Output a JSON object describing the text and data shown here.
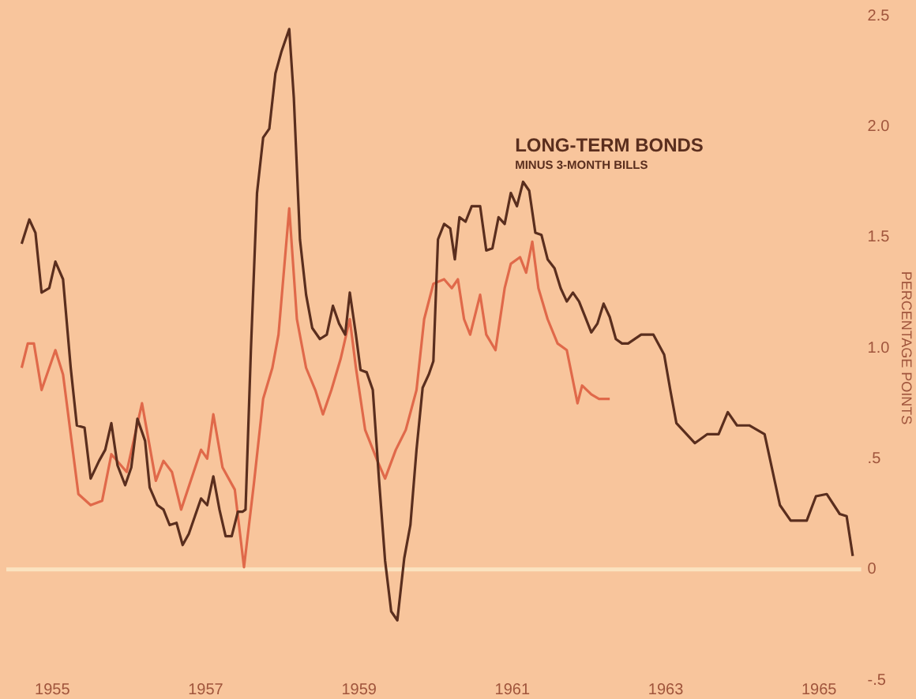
{
  "chart_data": {
    "type": "line",
    "ylabel": "PERCENTAGE POINTS",
    "xlim": [
      1954.9,
      1966.05
    ],
    "xticks": [
      {
        "value": 1955.5,
        "label": "1955"
      },
      {
        "value": 1957.5,
        "label": "1957"
      },
      {
        "value": 1959.5,
        "label": "1959"
      },
      {
        "value": 1961.5,
        "label": "1961"
      },
      {
        "value": 1963.5,
        "label": "1963"
      },
      {
        "value": 1965.5,
        "label": "1965"
      }
    ],
    "ylim": [
      -0.5,
      2.5
    ],
    "yticks": [
      {
        "value": 2.5,
        "label": "2.5"
      },
      {
        "value": 2.0,
        "label": "2.0"
      },
      {
        "value": 1.5,
        "label": "1.5"
      },
      {
        "value": 1.0,
        "label": "1.0"
      },
      {
        "value": 0.5,
        "label": ".5"
      },
      {
        "value": 0,
        "label": "0"
      },
      {
        "value": -0.5,
        "label": "-.5"
      }
    ],
    "grid": false,
    "legend": false,
    "marker": "none",
    "line_style": "solid",
    "ref_lines": [
      {
        "axis": "y",
        "value": 0,
        "color": "#fbe3c0"
      }
    ],
    "series": [
      {
        "name": "LONG-TERM BONDS\nMINUS 3-MONTH BILLS",
        "color": "#5a2e1e",
        "x": [
          1955.1,
          1955.2,
          1955.28,
          1955.36,
          1955.46,
          1955.54,
          1955.64,
          1955.74,
          1955.82,
          1955.92,
          1956.0,
          1956.11,
          1956.19,
          1956.27,
          1956.35,
          1956.45,
          1956.53,
          1956.61,
          1956.71,
          1956.77,
          1956.87,
          1956.95,
          1957.03,
          1957.12,
          1957.2,
          1957.28,
          1957.36,
          1957.44,
          1957.52,
          1957.6,
          1957.68,
          1957.76,
          1957.84,
          1957.92,
          1957.98,
          1958.02,
          1958.09,
          1958.17,
          1958.25,
          1958.33,
          1958.41,
          1958.49,
          1958.59,
          1958.65,
          1958.73,
          1958.81,
          1958.89,
          1958.99,
          1959.08,
          1959.16,
          1959.24,
          1959.32,
          1959.38,
          1959.46,
          1959.52,
          1959.6,
          1959.68,
          1959.76,
          1959.84,
          1959.92,
          1960.0,
          1960.09,
          1960.17,
          1960.25,
          1960.33,
          1960.41,
          1960.47,
          1960.53,
          1960.61,
          1960.69,
          1960.75,
          1960.81,
          1960.89,
          1960.97,
          1961.08,
          1961.16,
          1961.24,
          1961.32,
          1961.4,
          1961.48,
          1961.56,
          1961.64,
          1961.72,
          1961.8,
          1961.88,
          1961.96,
          1962.05,
          1962.13,
          1962.21,
          1962.29,
          1962.37,
          1962.45,
          1962.53,
          1962.61,
          1962.69,
          1962.77,
          1962.85,
          1962.93,
          1963.01,
          1963.18,
          1963.34,
          1963.48,
          1963.56,
          1963.64,
          1963.88,
          1964.04,
          1964.19,
          1964.31,
          1964.43,
          1964.59,
          1964.79,
          1964.99,
          1965.13,
          1965.34,
          1965.46,
          1965.6,
          1965.77,
          1965.86,
          1965.94
        ],
        "values": [
          1.47,
          1.58,
          1.52,
          1.25,
          1.27,
          1.39,
          1.31,
          0.91,
          0.65,
          0.64,
          0.41,
          0.49,
          0.54,
          0.66,
          0.47,
          0.38,
          0.46,
          0.68,
          0.58,
          0.37,
          0.29,
          0.27,
          0.2,
          0.21,
          0.11,
          0.16,
          0.24,
          0.32,
          0.29,
          0.42,
          0.27,
          0.15,
          0.15,
          0.26,
          0.26,
          0.27,
          0.99,
          1.7,
          1.95,
          1.99,
          2.24,
          2.34,
          2.44,
          2.13,
          1.49,
          1.24,
          1.09,
          1.04,
          1.06,
          1.19,
          1.11,
          1.06,
          1.25,
          1.06,
          0.9,
          0.89,
          0.81,
          0.41,
          0.04,
          -0.19,
          -0.23,
          0.05,
          0.2,
          0.54,
          0.82,
          0.88,
          0.94,
          1.49,
          1.56,
          1.54,
          1.4,
          1.59,
          1.57,
          1.64,
          1.64,
          1.44,
          1.45,
          1.59,
          1.56,
          1.7,
          1.64,
          1.75,
          1.71,
          1.52,
          1.51,
          1.4,
          1.36,
          1.27,
          1.21,
          1.25,
          1.21,
          1.14,
          1.07,
          1.11,
          1.2,
          1.14,
          1.04,
          1.02,
          1.02,
          1.06,
          1.06,
          0.97,
          0.81,
          0.66,
          0.57,
          0.61,
          0.61,
          0.71,
          0.65,
          0.65,
          0.61,
          0.29,
          0.22,
          0.22,
          0.33,
          0.34,
          0.25,
          0.24,
          0.06
        ]
      },
      {
        "color": "#e0694a",
        "x": [
          1955.1,
          1955.18,
          1955.26,
          1955.36,
          1955.54,
          1955.64,
          1955.84,
          1956.0,
          1956.15,
          1956.27,
          1956.47,
          1956.67,
          1956.85,
          1956.95,
          1957.06,
          1957.18,
          1957.44,
          1957.52,
          1957.6,
          1957.72,
          1957.88,
          1958.0,
          1958.13,
          1958.25,
          1958.37,
          1958.45,
          1958.59,
          1958.69,
          1958.81,
          1958.93,
          1959.03,
          1959.14,
          1959.26,
          1959.38,
          1959.46,
          1959.58,
          1959.74,
          1959.84,
          1959.98,
          1960.11,
          1960.25,
          1960.35,
          1960.47,
          1960.61,
          1960.71,
          1960.79,
          1960.87,
          1960.95,
          1961.08,
          1961.16,
          1961.28,
          1961.4,
          1961.48,
          1961.6,
          1961.68,
          1961.76,
          1961.84,
          1961.96,
          1962.09,
          1962.21,
          1962.35,
          1962.41,
          1962.53,
          1962.63,
          1962.77
        ],
        "values": [
          0.91,
          1.02,
          1.02,
          0.81,
          0.99,
          0.88,
          0.34,
          0.29,
          0.31,
          0.52,
          0.44,
          0.75,
          0.4,
          0.49,
          0.44,
          0.27,
          0.54,
          0.5,
          0.7,
          0.46,
          0.36,
          0.01,
          0.39,
          0.77,
          0.91,
          1.06,
          1.63,
          1.13,
          0.91,
          0.81,
          0.7,
          0.81,
          0.95,
          1.13,
          0.91,
          0.63,
          0.49,
          0.41,
          0.54,
          0.63,
          0.81,
          1.13,
          1.29,
          1.31,
          1.27,
          1.31,
          1.13,
          1.06,
          1.24,
          1.06,
          0.99,
          1.27,
          1.38,
          1.41,
          1.34,
          1.48,
          1.27,
          1.13,
          1.02,
          0.99,
          0.75,
          0.83,
          0.79,
          0.77,
          0.77
        ]
      }
    ]
  }
}
